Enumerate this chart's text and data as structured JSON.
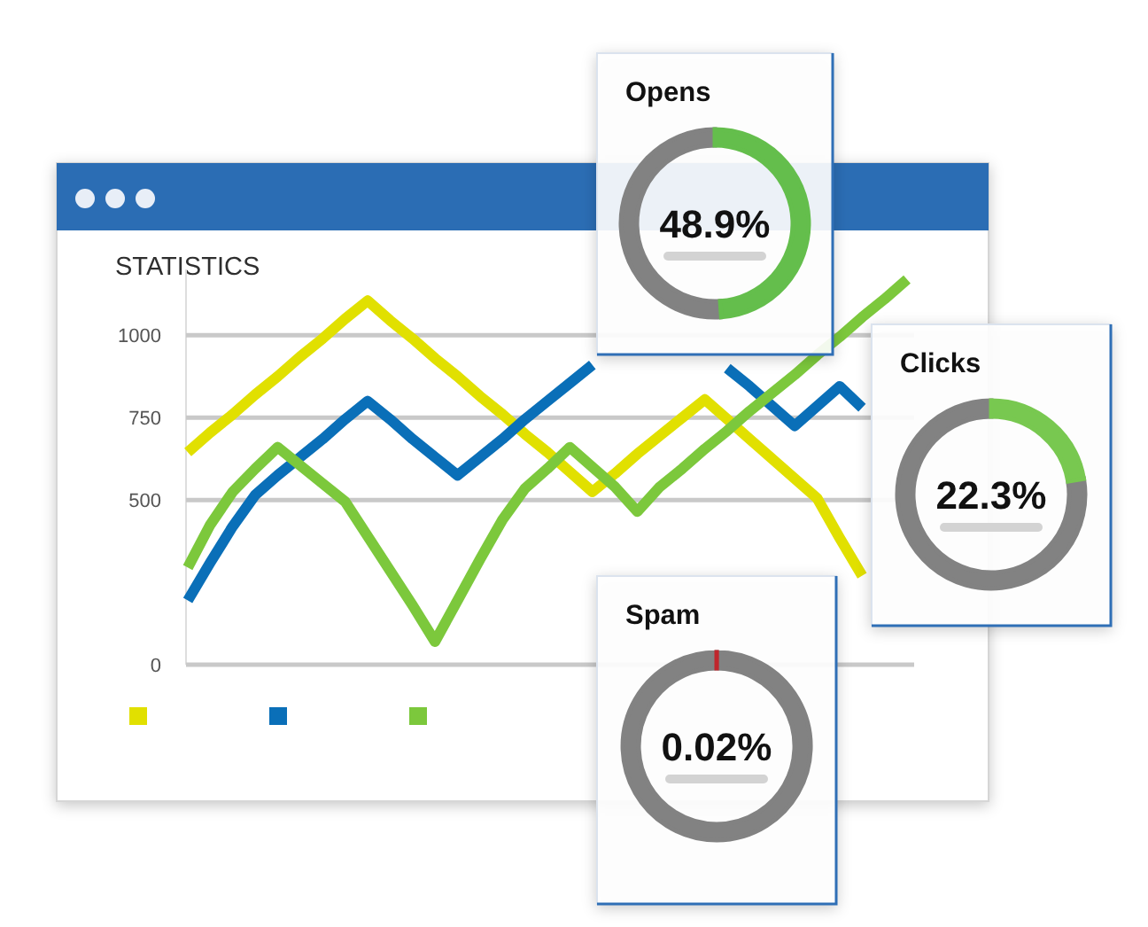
{
  "chart_data": [
    {
      "type": "line",
      "title": "STATISTICS",
      "categories": [
        null,
        null,
        null,
        null,
        null,
        null,
        null,
        null,
        null,
        null,
        null,
        null,
        null,
        null,
        null,
        null,
        null,
        null,
        null,
        null,
        null,
        null,
        null,
        null,
        null,
        null,
        null,
        null,
        null,
        null,
        null,
        null,
        null
      ],
      "series": [
        {
          "color": "#e1e000",
          "values": [
            645,
            705,
            760,
            820,
            875,
            935,
            990,
            1050,
            1105,
            1045,
            990,
            930,
            875,
            815,
            760,
            700,
            645,
            585,
            525,
            580,
            640,
            695,
            750,
            805,
            745,
            685,
            625,
            565,
            505,
            385,
            270,
            null,
            null
          ]
        },
        {
          "color": "#0a6fb8",
          "values": [
            195,
            310,
            420,
            515,
            575,
            630,
            685,
            745,
            800,
            745,
            685,
            630,
            575,
            630,
            685,
            745,
            800,
            855,
            910,
            null,
            null,
            null,
            null,
            null,
            900,
            845,
            785,
            725,
            785,
            845,
            780,
            null,
            null
          ]
        },
        {
          "color": "#7cc83c",
          "values": [
            295,
            425,
            525,
            595,
            660,
            605,
            550,
            495,
            390,
            285,
            180,
            70,
            195,
            320,
            440,
            535,
            595,
            660,
            600,
            540,
            465,
            540,
            595,
            655,
            710,
            770,
            825,
            880,
            940,
            995,
            1055,
            1110,
            1170
          ]
        }
      ],
      "ylim": [
        0,
        1200
      ],
      "yticks": [
        0,
        500,
        750,
        1000
      ],
      "grid": "y",
      "tick_labels": "y"
    },
    {
      "type": "donut",
      "title": "Opens",
      "categories": [
        null,
        null
      ],
      "values": [
        48.9,
        51.1
      ],
      "colors": [
        "#64be4c",
        "#828282"
      ],
      "annotations": [
        "48.9%"
      ]
    },
    {
      "type": "donut",
      "title": "Clicks",
      "categories": [
        null,
        null
      ],
      "values": [
        22.3,
        77.7
      ],
      "colors": [
        "#78c850",
        "#828282"
      ],
      "annotations": [
        "22.3%"
      ]
    },
    {
      "type": "donut",
      "title": "Spam",
      "categories": [
        null,
        null
      ],
      "values": [
        0.02,
        99.98
      ],
      "colors": [
        "#c0262c",
        "#828282"
      ],
      "annotations": [
        "0.02%"
      ]
    }
  ]
}
